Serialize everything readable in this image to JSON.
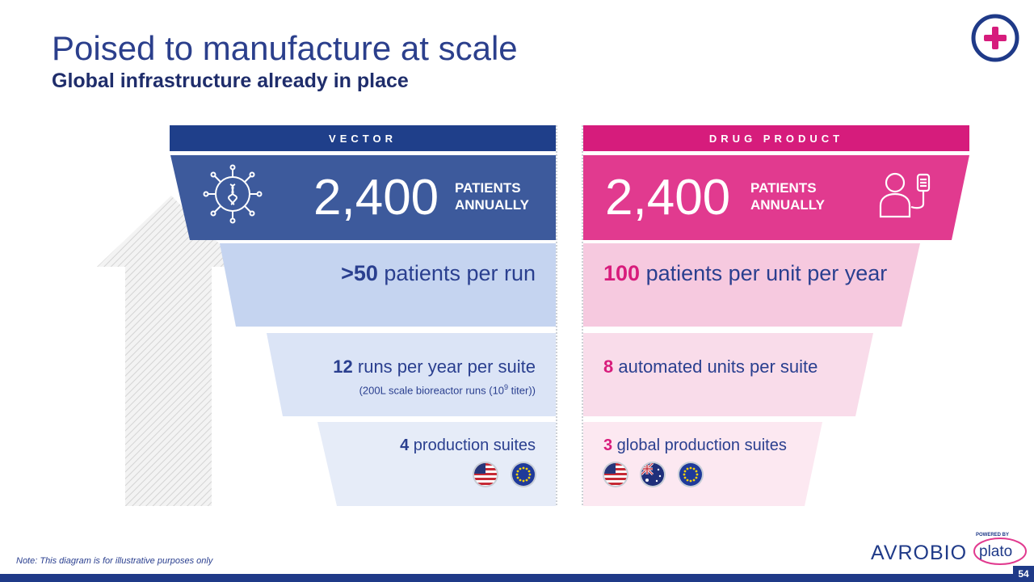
{
  "header": {
    "title": "Poised to manufacture at scale",
    "subtitle": "Global infrastructure already in place"
  },
  "columns": {
    "vector": {
      "label": "VECTOR",
      "color": "#1f3f8a",
      "top_color": "#3d5a9c",
      "headline_number": "2,400",
      "headline_unit_line1": "PATIENTS",
      "headline_unit_line2": "ANNUALLY",
      "icon": "virus-icon",
      "tier1": {
        "strong": ">50",
        "rest": " patients per run"
      },
      "tier2": {
        "strong": "12",
        "rest": " runs per year per suite",
        "note_pre": "(200L scale bioreactor runs (10",
        "note_sup": "9",
        "note_post": " titer))"
      },
      "tier3": {
        "strong": "4",
        "rest": " production suites"
      },
      "flags": [
        "us-flag-icon",
        "eu-flag-icon"
      ]
    },
    "drug_product": {
      "label": "DRUG PRODUCT",
      "color": "#d61c7c",
      "top_color": "#e13a8f",
      "headline_number": "2,400",
      "headline_unit_line1": "PATIENTS",
      "headline_unit_line2": "ANNUALLY",
      "icon": "patient-iv-icon",
      "tier1": {
        "strong": "100",
        "rest": " patients per unit per year"
      },
      "tier2": {
        "strong": "8",
        "rest": " automated units per suite"
      },
      "tier3": {
        "strong": "3",
        "rest": " global production suites"
      },
      "flags": [
        "us-flag-icon",
        "australia-flag-icon",
        "eu-flag-icon"
      ]
    }
  },
  "footer": {
    "note": "Note: This diagram is for illustrative purposes only",
    "page_number": "54",
    "logo_text": "AVROBIO",
    "logo_powered_by": "POWERED BY",
    "logo_plato": "plato"
  }
}
